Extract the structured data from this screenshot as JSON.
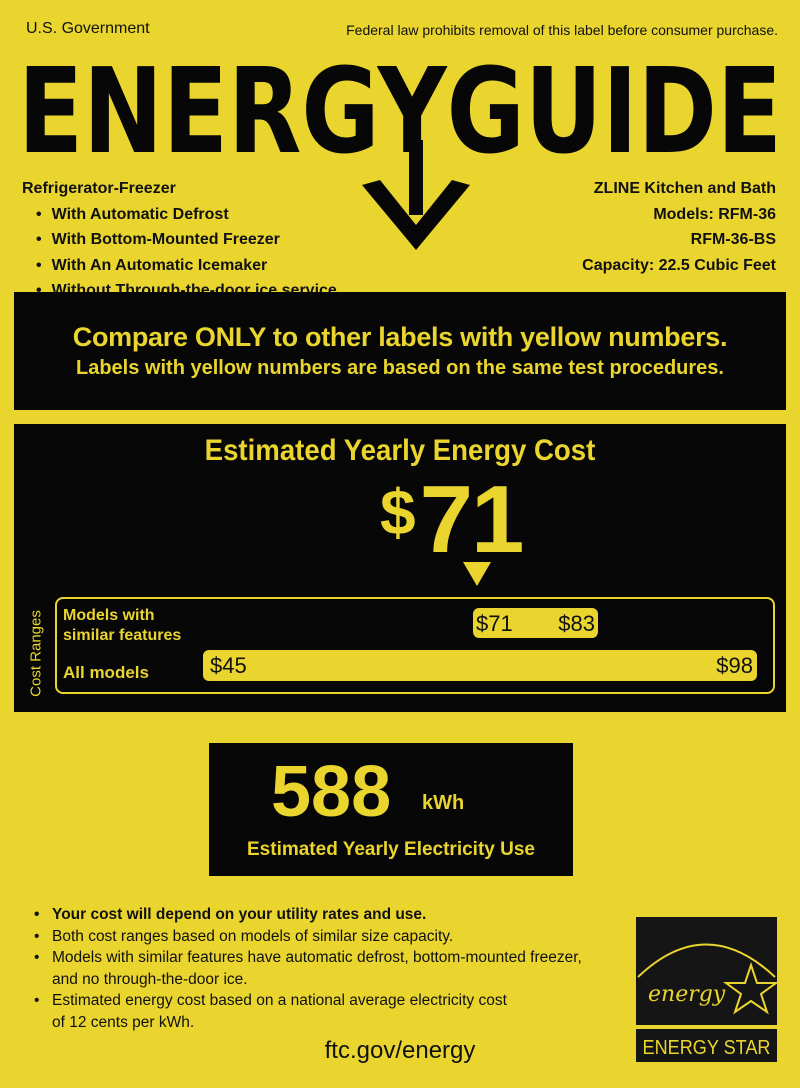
{
  "header": {
    "issuer": "U.S. Government",
    "notice": "Federal law prohibits removal of this label before consumer purchase.",
    "title": "ENERGYGUIDE"
  },
  "product": {
    "type": "Refrigerator-Freezer",
    "features": [
      "With Automatic Defrost",
      "With Bottom-Mounted Freezer",
      "With An Automatic Icemaker",
      "Without Through-the-door ice service"
    ],
    "manufacturer": "ZLINE Kitchen and Bath",
    "models_line1": "Models: RFM-36",
    "models_line2": "RFM-36-BS",
    "capacity": "Capacity: 22.5 Cubic Feet"
  },
  "compare": {
    "line1": "Compare ONLY to other labels with yellow numbers.",
    "line2": "Labels with yellow numbers are based on the same test procedures."
  },
  "cost": {
    "title": "Estimated Yearly Energy Cost",
    "currency": "$",
    "value": "71",
    "ranges_label": "Cost Ranges",
    "similar_label_1": "Models with",
    "similar_label_2": "similar features",
    "similar_min": "$71",
    "similar_max": "$83",
    "all_label": "All models",
    "all_min": "$45",
    "all_max": "$98"
  },
  "electricity": {
    "value": "588",
    "unit": "kWh",
    "caption": "Estimated Yearly Electricity Use"
  },
  "notes": [
    "Your cost will depend on your utility rates and use.",
    "Both cost ranges based on models of similar size capacity.",
    "Models with similar features have automatic defrost, bottom-mounted freezer,",
    "and no through-the-door ice.",
    "Estimated energy cost based on a national average electricity cost",
    "of 12 cents per kWh."
  ],
  "footer": {
    "url": "ftc.gov/energy"
  },
  "energy_star": {
    "script": "energy",
    "label": "ENERGY STAR"
  },
  "colors": {
    "background": "#ead52f",
    "black": "#070707"
  }
}
